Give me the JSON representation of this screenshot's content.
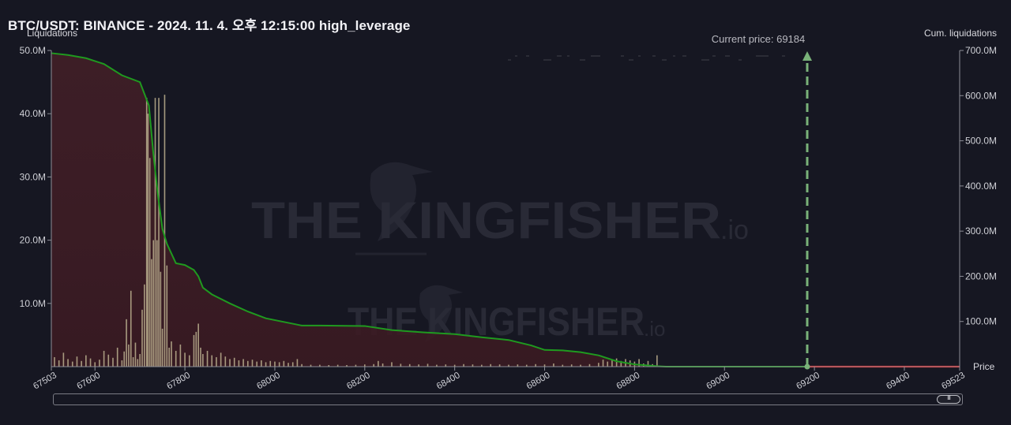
{
  "header": {
    "title": "BTC/USDT: BINANCE - 2024. 11. 4. 오후 12:15:00 high_leverage"
  },
  "watermark": {
    "brand": "THE KINGFISHER",
    "suffix": ".io"
  },
  "scrollbar": {
    "grip": "III"
  },
  "colors": {
    "background": "#161722",
    "cum_line": "#1f9a1f",
    "cum_fill": "#3a1f27",
    "bars": "#b5a98a",
    "current_price_marker": "#79b279",
    "above_price_line": "#e02020"
  },
  "chart_data": {
    "type": "bar",
    "title": "BTC/USDT: BINANCE - 2024. 11. 4. 오후 12:15:00 high_leverage",
    "ylabel": "Liquidations",
    "y2label": "Cum. liquidations",
    "xlabel": "Price",
    "xlim": [
      67503,
      69523
    ],
    "ylim": [
      0,
      50000000
    ],
    "y2lim": [
      0,
      700000000
    ],
    "x_ticks": [
      "67503",
      "67600",
      "67800",
      "68000",
      "68200",
      "68400",
      "68600",
      "68800",
      "69000",
      "69200",
      "69400",
      "69523"
    ],
    "y_ticks": [
      "10.0M",
      "20.0M",
      "30.0M",
      "40.0M",
      "50.0M"
    ],
    "y2_ticks": [
      "100.0M",
      "200.0M",
      "300.0M",
      "400.0M",
      "500.0M",
      "600.0M",
      "700.0M"
    ],
    "current_price": 69184,
    "current_price_label": "Current price: 69184",
    "grid": false,
    "series": [
      {
        "name": "Liquidations",
        "kind": "bar",
        "points": [
          [
            67510,
            1500000
          ],
          [
            67520,
            1000000
          ],
          [
            67530,
            2200000
          ],
          [
            67540,
            1200000
          ],
          [
            67550,
            800000
          ],
          [
            67560,
            1600000
          ],
          [
            67570,
            900000
          ],
          [
            67580,
            1800000
          ],
          [
            67590,
            1300000
          ],
          [
            67600,
            700000
          ],
          [
            67610,
            1100000
          ],
          [
            67620,
            2500000
          ],
          [
            67630,
            1900000
          ],
          [
            67640,
            1400000
          ],
          [
            67650,
            3000000
          ],
          [
            67660,
            1000000
          ],
          [
            67665,
            2400000
          ],
          [
            67670,
            7500000
          ],
          [
            67675,
            3500000
          ],
          [
            67680,
            12000000
          ],
          [
            67685,
            1500000
          ],
          [
            67690,
            3800000
          ],
          [
            67695,
            1200000
          ],
          [
            67700,
            2000000
          ],
          [
            67705,
            9000000
          ],
          [
            67710,
            13000000
          ],
          [
            67715,
            42500000
          ],
          [
            67718,
            40000000
          ],
          [
            67722,
            33000000
          ],
          [
            67726,
            17000000
          ],
          [
            67730,
            20000000
          ],
          [
            67734,
            42500000
          ],
          [
            67738,
            20000000
          ],
          [
            67742,
            42500000
          ],
          [
            67746,
            15000000
          ],
          [
            67750,
            6000000
          ],
          [
            67755,
            43000000
          ],
          [
            67760,
            16000000
          ],
          [
            67765,
            3000000
          ],
          [
            67770,
            4000000
          ],
          [
            67780,
            2500000
          ],
          [
            67790,
            3500000
          ],
          [
            67800,
            2200000
          ],
          [
            67810,
            1800000
          ],
          [
            67820,
            5000000
          ],
          [
            67825,
            5500000
          ],
          [
            67830,
            6800000
          ],
          [
            67835,
            3000000
          ],
          [
            67840,
            2000000
          ],
          [
            67850,
            2500000
          ],
          [
            67860,
            1800000
          ],
          [
            67870,
            1500000
          ],
          [
            67880,
            2200000
          ],
          [
            67890,
            1600000
          ],
          [
            67900,
            1200000
          ],
          [
            67910,
            1400000
          ],
          [
            67920,
            1000000
          ],
          [
            67930,
            1200000
          ],
          [
            67940,
            900000
          ],
          [
            67950,
            1100000
          ],
          [
            67960,
            800000
          ],
          [
            67970,
            1000000
          ],
          [
            67980,
            700000
          ],
          [
            67990,
            900000
          ],
          [
            68000,
            800000
          ],
          [
            68010,
            700000
          ],
          [
            68020,
            900000
          ],
          [
            68030,
            600000
          ],
          [
            68040,
            700000
          ],
          [
            68050,
            1200000
          ],
          [
            68060,
            400000
          ],
          [
            68080,
            300000
          ],
          [
            68100,
            300000
          ],
          [
            68120,
            250000
          ],
          [
            68140,
            300000
          ],
          [
            68160,
            250000
          ],
          [
            68180,
            300000
          ],
          [
            68200,
            350000
          ],
          [
            68220,
            400000
          ],
          [
            68230,
            900000
          ],
          [
            68240,
            500000
          ],
          [
            68260,
            700000
          ],
          [
            68280,
            450000
          ],
          [
            68300,
            400000
          ],
          [
            68320,
            350000
          ],
          [
            68340,
            450000
          ],
          [
            68360,
            300000
          ],
          [
            68380,
            350000
          ],
          [
            68400,
            300000
          ],
          [
            68420,
            400000
          ],
          [
            68440,
            350000
          ],
          [
            68460,
            300000
          ],
          [
            68480,
            400000
          ],
          [
            68500,
            350000
          ],
          [
            68520,
            300000
          ],
          [
            68540,
            350000
          ],
          [
            68560,
            300000
          ],
          [
            68580,
            400000
          ],
          [
            68600,
            350000
          ],
          [
            68620,
            500000
          ],
          [
            68640,
            300000
          ],
          [
            68660,
            350000
          ],
          [
            68680,
            300000
          ],
          [
            68700,
            400000
          ],
          [
            68720,
            600000
          ],
          [
            68730,
            1100000
          ],
          [
            68740,
            800000
          ],
          [
            68750,
            1000000
          ],
          [
            68760,
            1300000
          ],
          [
            68770,
            900000
          ],
          [
            68780,
            1200000
          ],
          [
            68790,
            1000000
          ],
          [
            68800,
            800000
          ],
          [
            68810,
            1200000
          ],
          [
            68820,
            500000
          ],
          [
            68830,
            900000
          ],
          [
            68840,
            400000
          ],
          [
            68850,
            1800000
          ]
        ]
      },
      {
        "name": "Cum. liquidations",
        "kind": "line",
        "axis": "right",
        "points": [
          [
            67503,
            694000000
          ],
          [
            67540,
            690000000
          ],
          [
            67580,
            683000000
          ],
          [
            67620,
            670000000
          ],
          [
            67660,
            645000000
          ],
          [
            67700,
            630000000
          ],
          [
            67720,
            578000000
          ],
          [
            67730,
            470000000
          ],
          [
            67740,
            380000000
          ],
          [
            67750,
            305000000
          ],
          [
            67760,
            272000000
          ],
          [
            67780,
            229000000
          ],
          [
            67800,
            225000000
          ],
          [
            67820,
            214000000
          ],
          [
            67830,
            200000000
          ],
          [
            67840,
            175000000
          ],
          [
            67860,
            160000000
          ],
          [
            67900,
            140000000
          ],
          [
            67940,
            122000000
          ],
          [
            67980,
            107000000
          ],
          [
            68040,
            95000000
          ],
          [
            68060,
            91000000
          ],
          [
            68100,
            91000000
          ],
          [
            68200,
            90000000
          ],
          [
            68260,
            81000000
          ],
          [
            68330,
            76000000
          ],
          [
            68400,
            72000000
          ],
          [
            68460,
            65000000
          ],
          [
            68520,
            59000000
          ],
          [
            68570,
            47000000
          ],
          [
            68600,
            37000000
          ],
          [
            68640,
            36000000
          ],
          [
            68680,
            32000000
          ],
          [
            68720,
            25000000
          ],
          [
            68760,
            12000000
          ],
          [
            68800,
            5000000
          ],
          [
            68850,
            1000000
          ],
          [
            68870,
            0
          ],
          [
            69184,
            0
          ]
        ]
      }
    ],
    "above_price_line": [
      [
        69184,
        0
      ],
      [
        69523,
        0
      ]
    ]
  }
}
